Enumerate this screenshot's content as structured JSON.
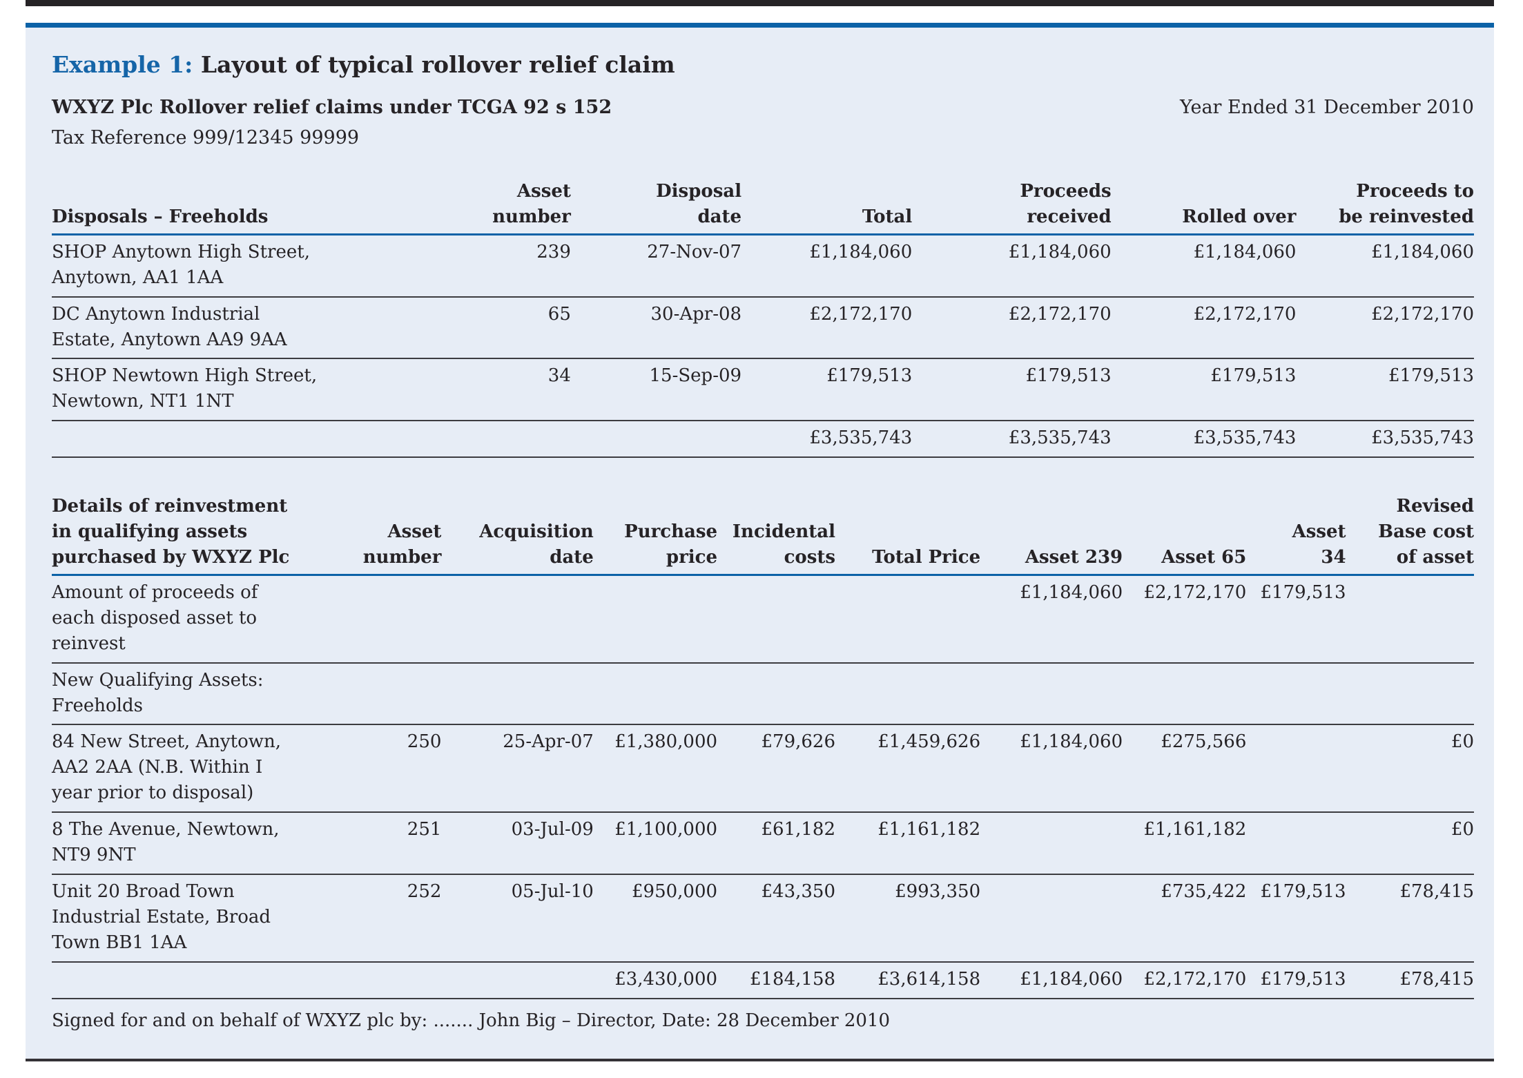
{
  "page": {
    "title_prefix": "Example 1:",
    "title_rest": " Layout of typical rollover relief claim",
    "claim_heading": "WXYZ Plc Rollover relief claims under TCGA 92 s 152",
    "year_ended": "Year Ended 31 December 2010",
    "tax_reference": "Tax Reference 999/12345 99999",
    "signature_line": "Signed for and on behalf of WXYZ plc by: ....... John Big – Director, Date: 28 December 2010"
  },
  "colors": {
    "accent_blue": "#1565a8",
    "rule_blue": "#0c62a7",
    "panel_background": "#e7edf6",
    "text": "#262326"
  },
  "disposals_table": {
    "header": [
      "Disposals – Freeholds",
      "Asset\nnumber",
      "Disposal\ndate",
      "Total",
      "Proceeds\nreceived",
      "Rolled over",
      "Proceeds to\nbe reinvested"
    ],
    "rows": [
      [
        "SHOP Anytown High Street,\nAnytown, AA1 1AA",
        "239",
        "27-Nov-07",
        "£1,184,060",
        "£1,184,060",
        "£1,184,060",
        "£1,184,060"
      ],
      [
        "DC Anytown Industrial\nEstate, Anytown AA9 9AA",
        "65",
        "30-Apr-08",
        "£2,172,170",
        "£2,172,170",
        "£2,172,170",
        "£2,172,170"
      ],
      [
        "SHOP Newtown High Street,\nNewtown, NT1 1NT",
        "34",
        "15-Sep-09",
        "£179,513",
        "£179,513",
        "£179,513",
        "£179,513"
      ]
    ],
    "totals": [
      "",
      "",
      "",
      "£3,535,743",
      "£3,535,743",
      "£3,535,743",
      "£3,535,743"
    ]
  },
  "reinvestment_table": {
    "header": [
      "Details of reinvestment\nin qualifying assets\npurchased by WXYZ Plc",
      "Asset\nnumber",
      "Acquisition\ndate",
      "Purchase\nprice",
      "Incidental\ncosts",
      "Total Price",
      "Asset 239",
      "Asset 65",
      "Asset\n34",
      "Revised\nBase cost\nof asset"
    ],
    "rows": [
      [
        "Amount of proceeds of\neach disposed asset to\nreinvest",
        "",
        "",
        "",
        "",
        "",
        "£1,184,060",
        "£2,172,170",
        "£179,513",
        ""
      ],
      [
        "New Qualifying Assets:\nFreeholds",
        "",
        "",
        "",
        "",
        "",
        "",
        "",
        "",
        ""
      ],
      [
        "84 New Street, Anytown,\nAA2 2AA (N.B. Within I\nyear prior to disposal)",
        "250",
        "25-Apr-07",
        "£1,380,000",
        "£79,626",
        "£1,459,626",
        "£1,184,060",
        "£275,566",
        "",
        "£0"
      ],
      [
        "8 The Avenue, Newtown,\nNT9 9NT",
        "251",
        "03-Jul-09",
        "£1,100,000",
        "£61,182",
        "£1,161,182",
        "",
        "£1,161,182",
        "",
        "£0"
      ],
      [
        "Unit 20 Broad Town\nIndustrial Estate, Broad\nTown BB1 1AA",
        "252",
        "05-Jul-10",
        "£950,000",
        "£43,350",
        "£993,350",
        "",
        "£735,422",
        "£179,513",
        "£78,415"
      ]
    ],
    "totals": [
      "",
      "",
      "",
      "£3,430,000",
      "£184,158",
      "£3,614,158",
      "£1,184,060",
      "£2,172,170",
      "£179,513",
      "£78,415"
    ]
  }
}
